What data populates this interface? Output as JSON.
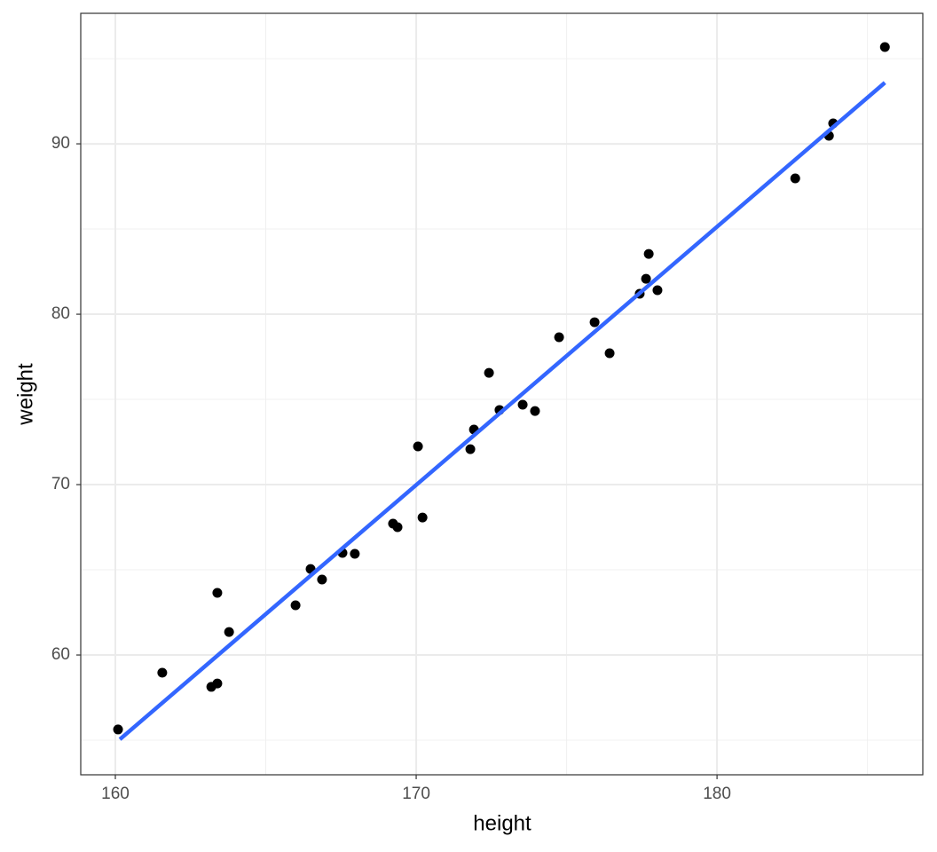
{
  "chart_data": {
    "type": "scatter",
    "x_label": "height",
    "y_label": "weight",
    "x": [
      160.09,
      161.56,
      163.19,
      163.39,
      163.39,
      163.78,
      165.99,
      166.49,
      166.87,
      167.55,
      167.96,
      169.23,
      169.38,
      170.06,
      170.21,
      171.8,
      171.92,
      172.42,
      172.77,
      173.54,
      173.95,
      174.75,
      175.93,
      176.43,
      177.43,
      177.64,
      177.73,
      178.02,
      182.6,
      183.72,
      183.86,
      185.58
    ],
    "y": [
      55.63,
      58.96,
      58.13,
      58.33,
      63.65,
      61.35,
      62.92,
      65.05,
      64.43,
      65.99,
      65.94,
      67.71,
      67.5,
      72.24,
      68.07,
      72.08,
      73.23,
      76.56,
      74.38,
      74.69,
      74.32,
      78.65,
      79.53,
      77.71,
      81.2,
      82.08,
      83.54,
      81.41,
      87.97,
      90.47,
      91.2,
      95.68
    ],
    "color": "#000000",
    "fit": {
      "x": [
        160.15,
        185.58
      ],
      "y": [
        55.05,
        93.59
      ],
      "color": "#3366ff"
    },
    "xlim": [
      158.85,
      186.84
    ],
    "ylim": [
      52.97,
      97.66
    ],
    "xticks": [
      160,
      170,
      180
    ],
    "yticks": [
      60,
      70,
      80,
      90
    ],
    "x_minor_ticks": [
      165,
      175,
      185
    ],
    "y_minor_ticks": [
      55,
      65,
      75,
      85,
      95
    ],
    "grid": true
  }
}
